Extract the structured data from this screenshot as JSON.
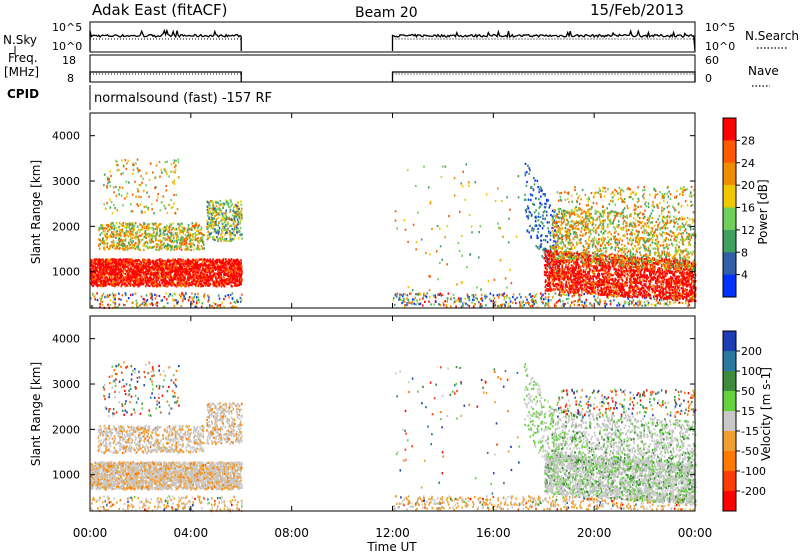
{
  "header": {
    "title": "Adak East (fitACF)",
    "beam": "Beam 20",
    "date": "15/Feb/2013"
  },
  "left_labels": {
    "nsky": "N.Sky",
    "freq_top": "Freq.",
    "freq_unit": "[MHz]",
    "cpid": "CPID"
  },
  "right_labels": {
    "nsearch": "N.Search",
    "nave": "Nave"
  },
  "cpid_text": "normalsound (fast) -157 RF",
  "chart_data": [
    {
      "type": "line",
      "panel": "noise",
      "left_axis_ticks": [
        "10^5",
        "10^0"
      ],
      "right_axis_ticks": [
        "10^5",
        "10^0"
      ],
      "x": [
        "00:00",
        "06:00",
        "12:00",
        "24:00"
      ],
      "segments": [
        [
          "00:00",
          "06:00"
        ],
        [
          "12:00",
          "24:00"
        ]
      ],
      "series": [
        {
          "name": "N.Sky",
          "style": "solid"
        },
        {
          "name": "N.Search",
          "style": "dotted"
        }
      ]
    },
    {
      "type": "line",
      "panel": "frequency",
      "left_axis_ticks": [
        "18",
        "8"
      ],
      "right_axis_ticks": [
        "60",
        "0"
      ],
      "segments": [
        [
          "00:00",
          "06:00"
        ],
        [
          "12:00",
          "24:00"
        ]
      ],
      "series": [
        {
          "name": "Freq.",
          "style": "solid"
        },
        {
          "name": "Nave",
          "style": "dotted"
        }
      ]
    },
    {
      "type": "heatmap",
      "panel": "power",
      "ylabel": "Slant Range [km]",
      "yticks": [
        "1000",
        "2000",
        "3000",
        "4000"
      ],
      "ylim": [
        200,
        4500
      ],
      "colorbar_label": "Power [dB]",
      "colorbar_ticks": [
        "28",
        "24",
        "20",
        "16",
        "12",
        "8",
        "4"
      ],
      "colors": [
        "#ff0000",
        "#ff5a00",
        "#f08c00",
        "#f0c800",
        "#6ecf5a",
        "#40a060",
        "#325fa8",
        "#0032ff"
      ]
    },
    {
      "type": "heatmap",
      "panel": "velocity",
      "ylabel": "Slant Range [km]",
      "yticks": [
        "1000",
        "2000",
        "3000",
        "4000"
      ],
      "ylim": [
        200,
        4500
      ],
      "colorbar_label": "Velocity [m s-1]",
      "colorbar_ticks": [
        "200",
        "100",
        "50",
        "15",
        "-15",
        "-50",
        "-100",
        "-200"
      ],
      "colors": [
        "#1e3cb4",
        "#2878a0",
        "#3c8c3c",
        "#64d23c",
        "#c8c8c8",
        "#f0a030",
        "#ff7800",
        "#ff3c00",
        "#ff0000"
      ]
    }
  ],
  "xaxis": {
    "ticks": [
      "00:00",
      "04:00",
      "08:00",
      "12:00",
      "16:00",
      "20:00",
      "00:00"
    ],
    "label": "Time UT"
  }
}
